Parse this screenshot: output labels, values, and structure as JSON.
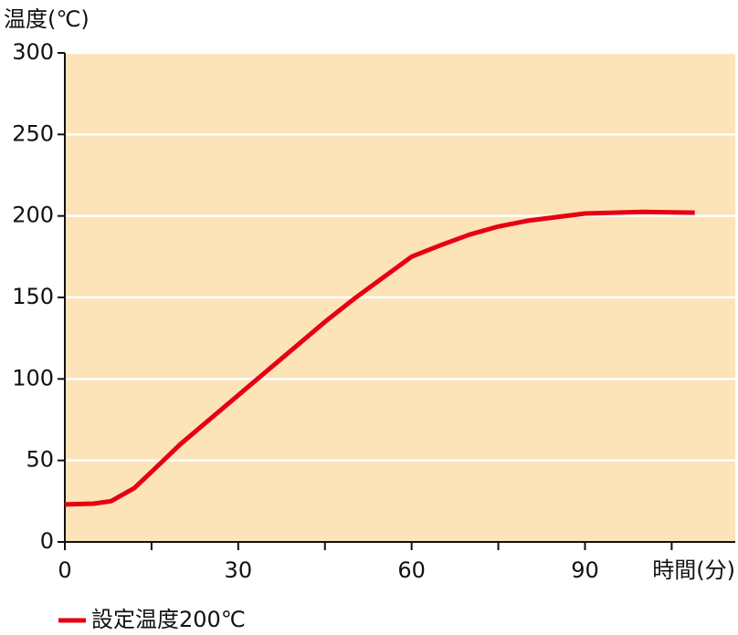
{
  "chart_data": {
    "type": "line",
    "y_label": "温度(℃)",
    "x_label": "時間(分)",
    "x": [
      0,
      5,
      8,
      12,
      15,
      20,
      30,
      40,
      45,
      50,
      60,
      65,
      70,
      75,
      80,
      90,
      100,
      109
    ],
    "series": [
      {
        "name": "設定温度200℃",
        "color": "#e60012",
        "values": [
          23,
          23.5,
          25,
          33,
          43,
          60,
          90,
          120,
          135,
          149,
          175,
          182,
          188.5,
          193.5,
          197,
          201.5,
          202.5,
          202
        ]
      }
    ],
    "xlim": [
      0,
      116
    ],
    "xticks": [
      0,
      30,
      60,
      90
    ],
    "xminorticks": [
      15,
      45,
      75,
      105
    ],
    "ylim": [
      0,
      300
    ],
    "yticks": [
      0,
      50,
      100,
      150,
      200,
      250,
      300
    ],
    "grid": true,
    "plot_background": "#fce3b8",
    "legend": "bottom-left"
  }
}
